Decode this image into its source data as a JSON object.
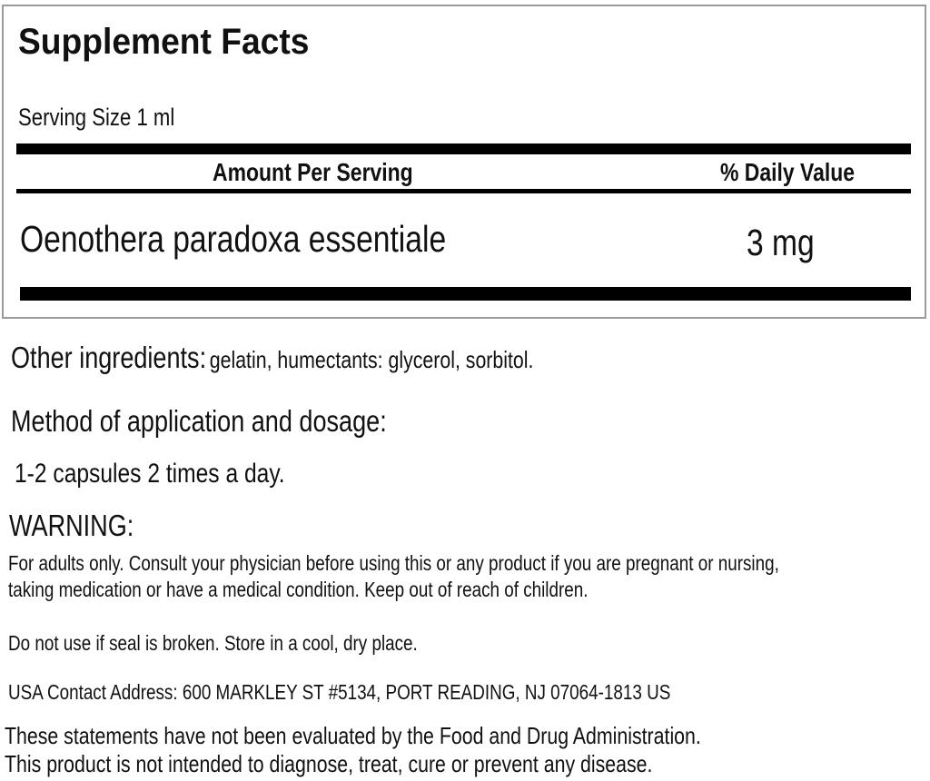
{
  "facts": {
    "title": "Supplement Facts",
    "serving_size_label": "Serving Size",
    "serving_size_value": "1 ml",
    "amount_header": "Amount Per Serving",
    "daily_value_header": "% Daily Value",
    "ingredient_name": "Oenothera paradoxa essentiale",
    "ingredient_amount": "3 mg"
  },
  "other_ingredients": {
    "label": "Other ingredients:",
    "text": "gelatin, humectants: glycerol, sorbitol."
  },
  "method": {
    "heading": "Method of application and dosage:",
    "text": "1-2 capsules 2 times a day."
  },
  "warning": {
    "heading": "WARNING:",
    "line1": "For adults only. Consult your physician before using this or any product if you are pregnant or nursing,",
    "line2": "taking medication or have a medical condition. Keep out of reach of children.",
    "storage": "Do not use if seal is broken. Store in a cool, dry place."
  },
  "contact": {
    "label": "USA Contact Address:",
    "address": "600 MARKLEY ST #5134, PORT READING, NJ 07064-1813 US"
  },
  "disclaimer": {
    "line1": "These statements have not been evaluated by the Food and Drug Administration.",
    "line2": "This product is not intended to diagnose, treat, cure or prevent any disease."
  }
}
